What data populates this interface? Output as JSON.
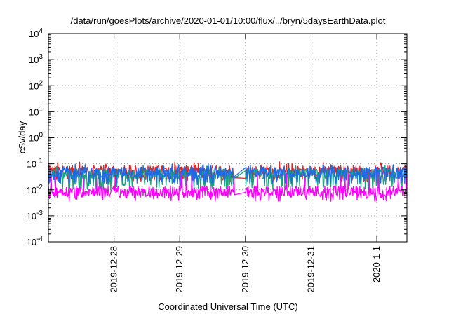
{
  "chart_data": {
    "type": "line",
    "title": "/data/run/goesPlots/archive/2020-01-01/10:00/flux/../bryn/5daysEarthData.plot",
    "xlabel": "Coordinated Universal Time (UTC)",
    "ylabel": "cSv/day",
    "yscale": "log",
    "ylim": [
      0.0001,
      10000
    ],
    "y_ticks": [
      {
        "value": 0.0001,
        "base": "10",
        "exp": "-4"
      },
      {
        "value": 0.001,
        "base": "10",
        "exp": "-3"
      },
      {
        "value": 0.01,
        "base": "10",
        "exp": "-2"
      },
      {
        "value": 0.1,
        "base": "10",
        "exp": "-1"
      },
      {
        "value": 1,
        "base": "10",
        "exp": "0"
      },
      {
        "value": 10,
        "base": "10",
        "exp": "1"
      },
      {
        "value": 100,
        "base": "10",
        "exp": "2"
      },
      {
        "value": 1000,
        "base": "10",
        "exp": "3"
      },
      {
        "value": 10000,
        "base": "10",
        "exp": "4"
      }
    ],
    "xlim": [
      "2019-12-27 00:00",
      "2020-01-01 11:00"
    ],
    "x_ticks": [
      {
        "label": "2019-12-28",
        "date": "2019-12-28 00:00"
      },
      {
        "label": "2019-12-29",
        "date": "2019-12-29 00:00"
      },
      {
        "label": "2019-12-30",
        "date": "2019-12-30 00:00"
      },
      {
        "label": "2019-12-31",
        "date": "2019-12-31 00:00"
      },
      {
        "label": "2020-1-1",
        "date": "2020-01-01 00:00"
      }
    ],
    "grid": true,
    "gaps": [
      [
        "2019-12-29 20:00",
        "2019-12-30 00:00"
      ]
    ],
    "series": [
      {
        "color": "#e51e1e",
        "typical": 0.055,
        "low": 0.025,
        "high": 0.11
      },
      {
        "color": "#1aa37a",
        "typical": 0.04,
        "low": 0.012,
        "high": 0.08
      },
      {
        "color": "#1e6ae6",
        "typical": 0.048,
        "low": 0.02,
        "high": 0.09
      },
      {
        "color": "#ff00ff",
        "typical": 0.009,
        "low": 0.0045,
        "high": 0.04
      }
    ]
  }
}
